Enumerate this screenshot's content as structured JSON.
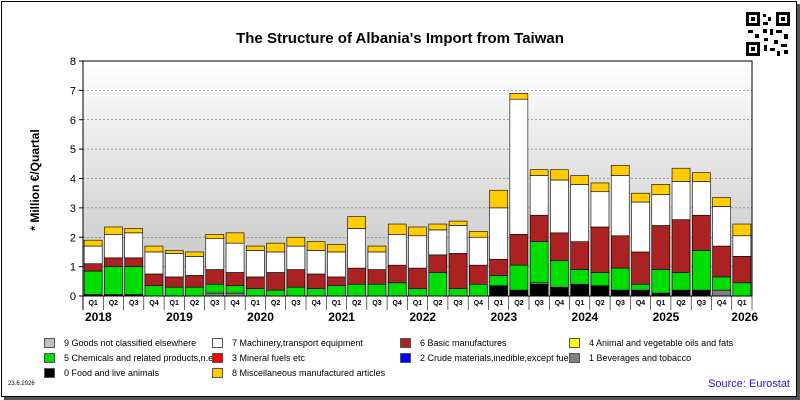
{
  "chart_data": {
    "type": "bar",
    "stacked": true,
    "title": "The Structure of Albania's Import from Taiwan",
    "ylabel": "* Million €/Quartal",
    "xlabel": "",
    "ylim": [
      0,
      8
    ],
    "yticks": [
      "0",
      "1",
      "2",
      "3",
      "4",
      "5",
      "6",
      "7",
      "8"
    ],
    "grid": true,
    "legend_position": "bottom",
    "categories": [
      "Q1",
      "Q2",
      "Q3",
      "Q4",
      "Q1",
      "Q2",
      "Q3",
      "Q4",
      "Q1",
      "Q2",
      "Q3",
      "Q4",
      "Q1",
      "Q2",
      "Q3",
      "Q4",
      "Q1",
      "Q2",
      "Q3",
      "Q4",
      "Q1",
      "Q2",
      "Q3",
      "Q4",
      "Q1",
      "Q2",
      "Q3",
      "Q4",
      "Q1",
      "Q2",
      "Q3",
      "Q4",
      "Q1"
    ],
    "years": [
      "2018",
      "2019",
      "2020",
      "2021",
      "2022",
      "2023",
      "2024",
      "2025",
      "2026"
    ],
    "series": [
      {
        "name": "0 Food and live animals",
        "color": "#000000",
        "values": [
          0.05,
          0.05,
          0.05,
          0,
          0,
          0,
          0,
          0,
          0,
          0,
          0,
          0,
          0,
          0,
          0,
          0,
          0,
          0,
          0,
          0,
          0.35,
          0.2,
          0.4,
          0.3,
          0.4,
          0.35,
          0.2,
          0.2,
          0.1,
          0.2,
          0.2,
          0,
          0
        ]
      },
      {
        "name": "1 Beverages and tobacco",
        "color": "#808080",
        "values": [
          0,
          0,
          0,
          0,
          0,
          0,
          0.1,
          0.1,
          0,
          0,
          0,
          0,
          0,
          0,
          0,
          0,
          0,
          0,
          0,
          0,
          0,
          0,
          0.05,
          0,
          0,
          0,
          0,
          0,
          0,
          0,
          0,
          0.2,
          0
        ]
      },
      {
        "name": "2 Crude materials,inedible,except fuels",
        "color": "#0000ff",
        "values": [
          0,
          0,
          0,
          0,
          0,
          0,
          0,
          0,
          0,
          0,
          0,
          0,
          0,
          0,
          0,
          0,
          0,
          0,
          0,
          0,
          0,
          0,
          0,
          0,
          0,
          0,
          0,
          0,
          0,
          0,
          0,
          0,
          0
        ]
      },
      {
        "name": "3 Mineral fuels etc",
        "color": "#ff0000",
        "values": [
          0,
          0,
          0,
          0,
          0,
          0,
          0,
          0,
          0,
          0,
          0,
          0,
          0,
          0,
          0,
          0,
          0,
          0,
          0,
          0,
          0,
          0,
          0,
          0,
          0,
          0,
          0,
          0,
          0,
          0,
          0,
          0,
          0
        ]
      },
      {
        "name": "4 Animal and vegetable oils and fats",
        "color": "#ffff00",
        "values": [
          0,
          0,
          0,
          0,
          0,
          0,
          0,
          0,
          0,
          0,
          0,
          0,
          0,
          0,
          0,
          0,
          0,
          0,
          0,
          0,
          0,
          0,
          0,
          0,
          0,
          0,
          0,
          0,
          0,
          0,
          0,
          0,
          0
        ]
      },
      {
        "name": "5 Chemicals and related products,n.e.s.",
        "color": "#00dd00",
        "values": [
          0.8,
          0.95,
          0.95,
          0.35,
          0.3,
          0.3,
          0.3,
          0.25,
          0.25,
          0.2,
          0.3,
          0.25,
          0.35,
          0.4,
          0.4,
          0.45,
          0.25,
          0.8,
          0.25,
          0.4,
          0.35,
          0.85,
          1.4,
          0.9,
          0.5,
          0.45,
          0.75,
          0.2,
          0.8,
          0.6,
          1.35,
          0.45,
          0.45
        ]
      },
      {
        "name": "6 Basic manufactures",
        "color": "#aa2222",
        "values": [
          0.25,
          0.3,
          0.3,
          0.4,
          0.35,
          0.4,
          0.5,
          0.45,
          0.4,
          0.6,
          0.6,
          0.5,
          0.3,
          0.55,
          0.5,
          0.6,
          0.7,
          0.6,
          1.2,
          0.65,
          0.55,
          1.05,
          0.9,
          0.95,
          0.95,
          1.55,
          1.1,
          1.1,
          1.5,
          1.8,
          1.2,
          1.05,
          0.9
        ]
      },
      {
        "name": "7 Machinery,transport equipment",
        "color": "#ffffff",
        "values": [
          0.6,
          0.8,
          0.85,
          0.75,
          0.8,
          0.65,
          1.05,
          1.0,
          0.9,
          0.7,
          0.8,
          0.8,
          0.85,
          1.35,
          0.6,
          1.05,
          1.1,
          0.85,
          0.95,
          0.95,
          1.75,
          4.6,
          1.35,
          1.8,
          1.95,
          1.2,
          2.05,
          1.7,
          1.05,
          1.3,
          1.15,
          1.35,
          0.7
        ]
      },
      {
        "name": "8 Miscellaneous manufactured articles",
        "color": "#ffcc00",
        "values": [
          0.2,
          0.25,
          0.15,
          0.2,
          0.1,
          0.15,
          0.15,
          0.35,
          0.15,
          0.3,
          0.3,
          0.3,
          0.25,
          0.4,
          0.2,
          0.35,
          0.3,
          0.2,
          0.15,
          0.2,
          0.6,
          0.2,
          0.2,
          0.35,
          0.3,
          0.3,
          0.35,
          0.3,
          0.35,
          0.45,
          0.3,
          0.3,
          0.4
        ]
      },
      {
        "name": "9 Goods not classified elsewhere",
        "color": "#c0c0c0",
        "values": [
          0,
          0,
          0,
          0,
          0,
          0,
          0,
          0,
          0,
          0,
          0,
          0,
          0,
          0,
          0,
          0,
          0,
          0,
          0,
          0,
          0,
          0,
          0,
          0,
          0,
          0,
          0,
          0,
          0,
          0,
          0,
          0,
          0
        ]
      }
    ],
    "legend_order": [
      9,
      7,
      6,
      4,
      5,
      3,
      2,
      1,
      0,
      8
    ]
  },
  "date_stamp": "23.6.2026",
  "source": "Source: Eurostat",
  "qr_icon": "qr-code-icon"
}
